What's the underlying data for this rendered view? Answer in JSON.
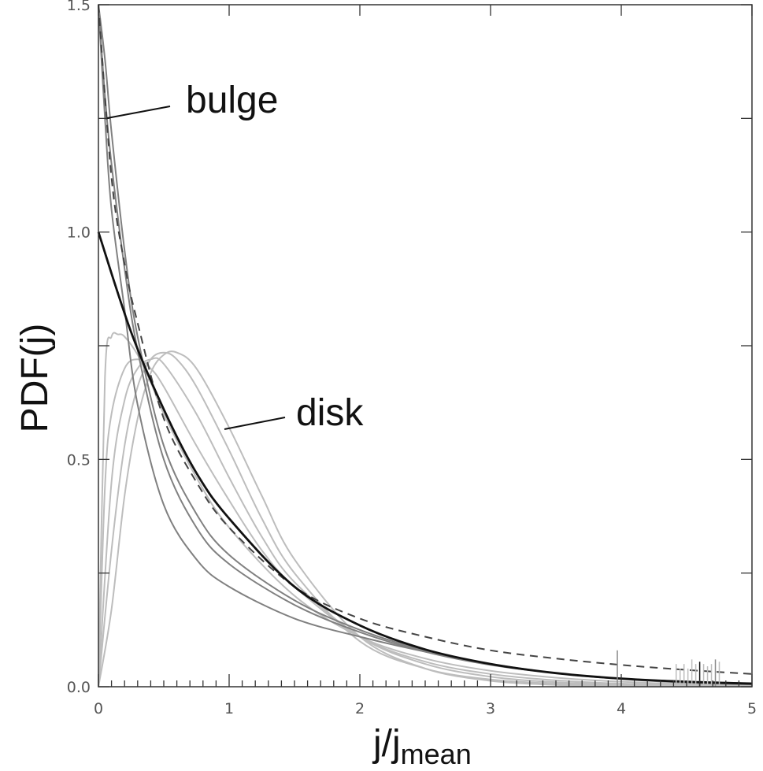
{
  "chart_data": {
    "type": "line",
    "xlabel": {
      "main": "j/j",
      "sub": "mean"
    },
    "ylabel": "PDF(j)",
    "xlim": [
      0,
      5
    ],
    "ylim": [
      0,
      1.5
    ],
    "x_major_ticks": [
      0,
      1,
      2,
      3,
      4,
      5
    ],
    "x_tick_labels": [
      "0",
      "1",
      "2",
      "3",
      "4",
      "5"
    ],
    "y_major_ticks": [
      0.0,
      0.5,
      1.0,
      1.5
    ],
    "y_tick_labels": [
      "0.0",
      "0.5",
      "1.0",
      "1.5"
    ],
    "grid": false,
    "colors": {
      "thick": "#111111",
      "dashed": "#444444",
      "dark_gray": "#808080",
      "light_gray": "#bdbdbd"
    },
    "annotations": [
      {
        "text": "bulge",
        "points_to": {
          "x": 0.07,
          "y": 1.25
        }
      },
      {
        "text": "disk",
        "points_to": {
          "x": 0.97,
          "y": 0.57
        }
      }
    ],
    "series": [
      {
        "style": "solid-thick",
        "color": "#111111",
        "x": [
          0,
          0.25,
          0.5,
          0.75,
          1,
          1.5,
          2,
          2.5,
          3,
          3.5,
          4,
          4.5,
          5
        ],
        "y": [
          1.0,
          0.78,
          0.61,
          0.47,
          0.37,
          0.22,
          0.135,
          0.082,
          0.05,
          0.03,
          0.018,
          0.011,
          0.007
        ]
      },
      {
        "style": "dashed",
        "color": "#444444",
        "x": [
          0,
          0.1,
          0.2,
          0.3,
          0.5,
          0.75,
          1,
          1.5,
          2,
          2.5,
          3,
          3.5,
          4,
          4.5,
          5
        ],
        "y": [
          1.5,
          1.12,
          0.93,
          0.8,
          0.59,
          0.45,
          0.35,
          0.22,
          0.15,
          0.11,
          0.08,
          0.062,
          0.048,
          0.037,
          0.028
        ]
      },
      {
        "style": "solid-dark-gray",
        "color": "#808080",
        "x": [
          0,
          0.05,
          0.1,
          0.2,
          0.3,
          0.5,
          0.75,
          1,
          1.5,
          2,
          2.5,
          3,
          3.5,
          4,
          4.5,
          5
        ],
        "y": [
          1.5,
          1.25,
          1.05,
          0.83,
          0.62,
          0.4,
          0.28,
          0.22,
          0.15,
          0.11,
          0.077,
          0.05,
          0.03,
          0.017,
          0.009,
          0.005
        ]
      },
      {
        "style": "solid-dark-gray",
        "color": "#808080",
        "x": [
          0,
          0.05,
          0.1,
          0.2,
          0.3,
          0.5,
          0.75,
          1,
          1.5,
          2,
          2.5,
          3,
          3.5,
          4,
          4.5,
          5
        ],
        "y": [
          1.5,
          1.3,
          1.15,
          0.92,
          0.74,
          0.5,
          0.35,
          0.27,
          0.18,
          0.12,
          0.077,
          0.048,
          0.03,
          0.018,
          0.011,
          0.006
        ]
      },
      {
        "style": "solid-dark-gray",
        "color": "#808080",
        "x": [
          0,
          0.05,
          0.1,
          0.2,
          0.3,
          0.5,
          0.75,
          1,
          1.5,
          2,
          2.5,
          3,
          3.5,
          4,
          4.5,
          5
        ],
        "y": [
          1.5,
          1.38,
          1.22,
          0.96,
          0.77,
          0.53,
          0.38,
          0.29,
          0.19,
          0.125,
          0.08,
          0.05,
          0.03,
          0.018,
          0.011,
          0.006
        ]
      },
      {
        "style": "solid-light-gray",
        "color": "#bdbdbd",
        "x": [
          0,
          0.05,
          0.1,
          0.15,
          0.2,
          0.3,
          0.4,
          0.5,
          0.75,
          1,
          1.5,
          2,
          2.5,
          3,
          3.5,
          4,
          4.5,
          5
        ],
        "y": [
          0,
          0.68,
          0.77,
          0.775,
          0.77,
          0.73,
          0.67,
          0.6,
          0.46,
          0.35,
          0.2,
          0.11,
          0.062,
          0.035,
          0.02,
          0.011,
          0.006,
          0.004
        ]
      },
      {
        "style": "solid-light-gray",
        "color": "#bdbdbd",
        "x": [
          0,
          0.05,
          0.1,
          0.2,
          0.3,
          0.4,
          0.5,
          0.75,
          1,
          1.25,
          1.5,
          2,
          2.5,
          3,
          3.5,
          4,
          4.5,
          5
        ],
        "y": [
          0,
          0.44,
          0.6,
          0.7,
          0.72,
          0.7,
          0.66,
          0.53,
          0.41,
          0.3,
          0.22,
          0.11,
          0.055,
          0.028,
          0.014,
          0.007,
          0.004,
          0.002
        ]
      },
      {
        "style": "solid-light-gray",
        "color": "#bdbdbd",
        "x": [
          0,
          0.1,
          0.2,
          0.3,
          0.4,
          0.5,
          0.75,
          1,
          1.25,
          1.5,
          2,
          2.5,
          3,
          3.5,
          4,
          4.5,
          5
        ],
        "y": [
          0,
          0.45,
          0.63,
          0.7,
          0.72,
          0.71,
          0.6,
          0.46,
          0.33,
          0.23,
          0.11,
          0.05,
          0.022,
          0.01,
          0.005,
          0.002,
          0.001
        ]
      },
      {
        "style": "solid-light-gray",
        "color": "#bdbdbd",
        "x": [
          0,
          0.1,
          0.2,
          0.3,
          0.4,
          0.5,
          0.6,
          0.75,
          1,
          1.25,
          1.5,
          2,
          2.5,
          3,
          3.5,
          4,
          4.5,
          5
        ],
        "y": [
          0,
          0.3,
          0.53,
          0.66,
          0.72,
          0.735,
          0.72,
          0.66,
          0.52,
          0.37,
          0.25,
          0.1,
          0.04,
          0.016,
          0.007,
          0.003,
          0.001,
          0.0005
        ]
      },
      {
        "style": "solid-light-gray",
        "color": "#bdbdbd",
        "x": [
          0,
          0.1,
          0.2,
          0.3,
          0.4,
          0.5,
          0.6,
          0.75,
          1,
          1.25,
          1.5,
          2,
          2.5,
          3,
          3.5,
          4,
          4.5,
          5
        ],
        "y": [
          0,
          0.17,
          0.42,
          0.59,
          0.69,
          0.73,
          0.735,
          0.7,
          0.57,
          0.42,
          0.28,
          0.11,
          0.04,
          0.013,
          0.004,
          0.001,
          0.0004,
          0.0001
        ]
      }
    ]
  }
}
